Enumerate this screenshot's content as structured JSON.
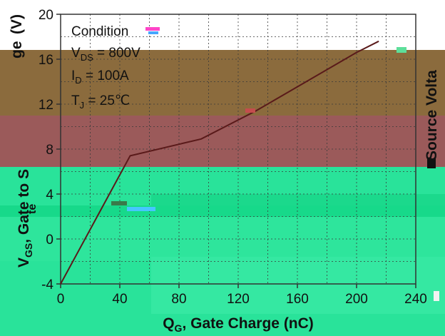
{
  "chart_data": {
    "type": "line",
    "xlabel": "Q",
    "xlabel_sub": "G",
    "xlabel_rest": ", Gate Charge (nC)",
    "ylabel": "V",
    "ylabel_sub": "GS",
    "ylabel_rest": ", Gate to S",
    "ylabel_unit": "(V)",
    "ylabel_fragment_top": "ge",
    "ylabel_fragment_mid": "te",
    "right_label": "Source Volta",
    "xlim": [
      0,
      240
    ],
    "ylim": [
      -4,
      20
    ],
    "xticks": [
      "0",
      "40",
      "80",
      "120",
      "160",
      "200",
      "240"
    ],
    "yticks": [
      "-4",
      "0",
      "4",
      "8",
      "12",
      "16",
      "20"
    ],
    "grid": true,
    "conditions": {
      "title": "Condition",
      "vds_label": "V",
      "vds_sub": "DS",
      "vds_value": " = 800V",
      "id_label": "I",
      "id_sub": "D",
      "id_value": " = 100A",
      "tj_label": "T",
      "tj_sub": "J",
      "tj_value": " = 25℃"
    },
    "series": [
      {
        "x": [
          0,
          47,
          95,
          132,
          200,
          215
        ],
        "y": [
          -4,
          7.4,
          8.9,
          11.4,
          16.6,
          17.6
        ]
      }
    ],
    "colors": {
      "line": "#5a1a1a",
      "band_brown": "#8b6b3d",
      "band_rose": "#9b5a5a",
      "band_green": "#29e39a",
      "band_green2": "#17d98a",
      "band_green3": "#0fbf78"
    }
  }
}
